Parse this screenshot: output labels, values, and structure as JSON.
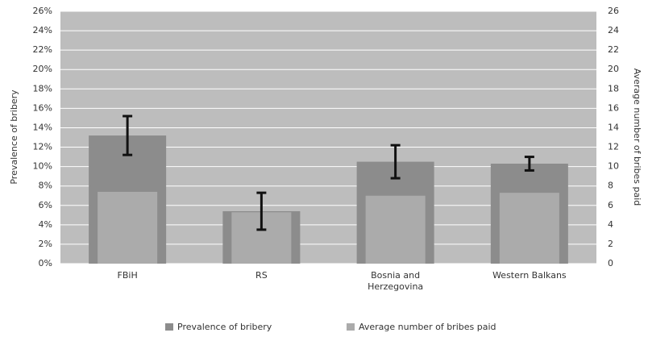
{
  "chart_data": {
    "type": "bar",
    "categories": [
      "FBiH",
      "RS",
      "Bosnia and Herzegovina",
      "Western Balkans"
    ],
    "series": [
      {
        "name": "Prevalence of bribery",
        "color": "#8c8c8c",
        "values": [
          13.2,
          5.4,
          10.5,
          10.3
        ],
        "errors": [
          2.0,
          1.9,
          1.7,
          0.7
        ]
      },
      {
        "name": "Average number of bribes paid",
        "color": "#ababab",
        "axis": "y2",
        "values": [
          7.4,
          5.3,
          7.0,
          7.3
        ]
      }
    ],
    "y_label": "Prevalence of bribery",
    "y2_label": "Average number of bribes paid",
    "ylim": [
      0,
      26
    ],
    "yticks": [
      {
        "value": 0,
        "label": "0%"
      },
      {
        "value": 2,
        "label": "2%"
      },
      {
        "value": 4,
        "label": "4%"
      },
      {
        "value": 6,
        "label": "6%"
      },
      {
        "value": 8,
        "label": "8%"
      },
      {
        "value": 10,
        "label": "10%"
      },
      {
        "value": 12,
        "label": "12%"
      },
      {
        "value": 14,
        "label": "14%"
      },
      {
        "value": 16,
        "label": "16%"
      },
      {
        "value": 18,
        "label": "18%"
      },
      {
        "value": 20,
        "label": "20%"
      },
      {
        "value": 22,
        "label": "22%"
      },
      {
        "value": 24,
        "label": "24%"
      },
      {
        "value": 26,
        "label": "26%"
      }
    ],
    "y2lim": [
      0,
      26
    ],
    "y2ticks": [
      0,
      2,
      4,
      6,
      8,
      10,
      12,
      14,
      16,
      18,
      20,
      22,
      24,
      26
    ],
    "grid": true,
    "legend": "bottom"
  }
}
